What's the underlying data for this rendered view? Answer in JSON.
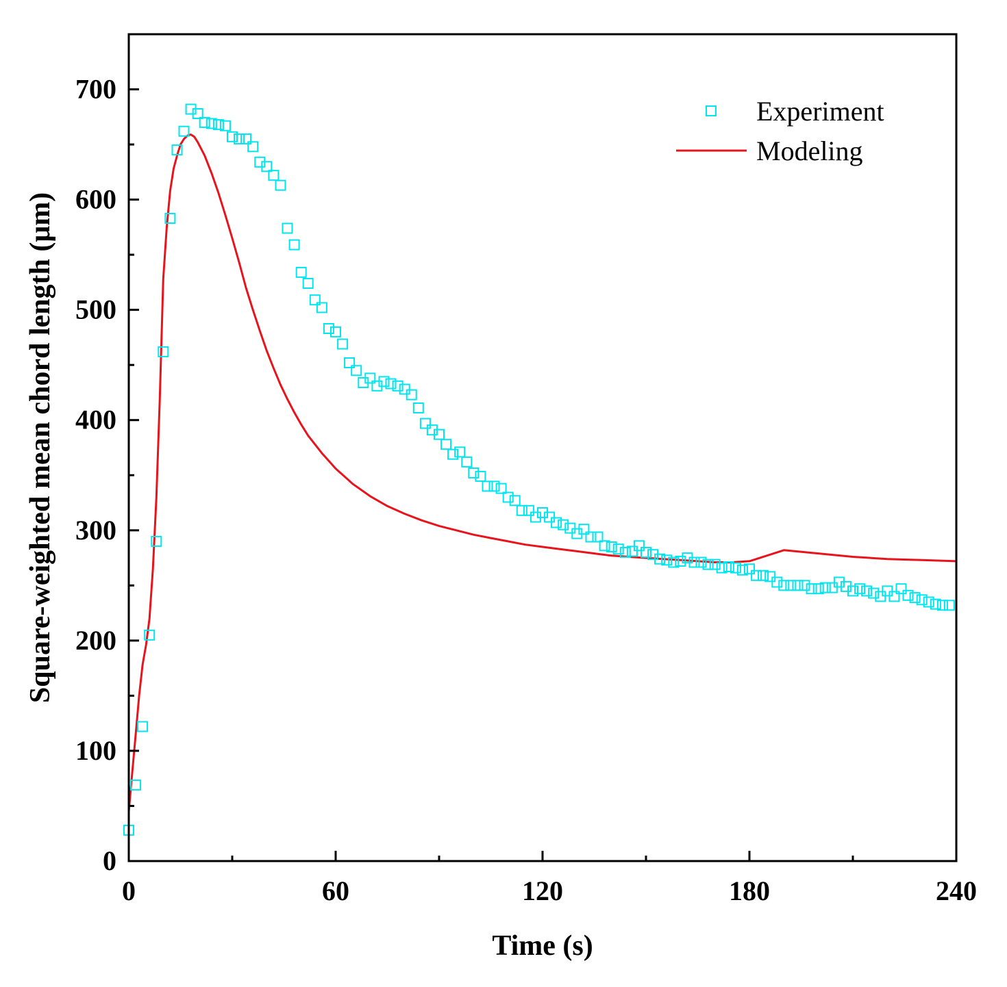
{
  "chart_data": {
    "type": "scatter",
    "title": "",
    "xlabel": "Time (s)",
    "ylabel": "Square-weighted mean chord length (μm)",
    "xlim": [
      0,
      240
    ],
    "ylim": [
      0,
      750
    ],
    "xticks": [
      0,
      60,
      120,
      180,
      240
    ],
    "xtick_labels": [
      "0",
      "60",
      "120",
      "180",
      "240"
    ],
    "x_minor_ticks": [
      30,
      90,
      150,
      210
    ],
    "yticks": [
      0,
      100,
      200,
      300,
      400,
      500,
      600,
      700
    ],
    "ytick_labels": [
      "0",
      "100",
      "200",
      "300",
      "400",
      "500",
      "600",
      "700"
    ],
    "y_minor_ticks": [
      50,
      150,
      250,
      350,
      450,
      550,
      650
    ],
    "legend_position": "top-right",
    "colors": {
      "experiment": "#00e5ee",
      "modeling": "#e8141c",
      "axis": "#000000"
    },
    "series": [
      {
        "name": "Experiment",
        "kind": "scatter",
        "marker": "open-square",
        "points": [
          [
            0,
            28
          ],
          [
            2,
            69
          ],
          [
            4,
            122
          ],
          [
            6,
            205
          ],
          [
            8,
            290
          ],
          [
            10,
            462
          ],
          [
            12,
            583
          ],
          [
            14,
            645
          ],
          [
            16,
            662
          ],
          [
            18,
            682
          ],
          [
            20,
            678
          ],
          [
            22,
            670
          ],
          [
            24,
            669
          ],
          [
            26,
            668
          ],
          [
            28,
            667
          ],
          [
            30,
            657
          ],
          [
            32,
            655
          ],
          [
            34,
            655
          ],
          [
            36,
            648
          ],
          [
            38,
            634
          ],
          [
            40,
            630
          ],
          [
            42,
            622
          ],
          [
            44,
            613
          ],
          [
            46,
            574
          ],
          [
            48,
            559
          ],
          [
            50,
            534
          ],
          [
            52,
            524
          ],
          [
            54,
            509
          ],
          [
            56,
            502
          ],
          [
            58,
            483
          ],
          [
            60,
            480
          ],
          [
            62,
            469
          ],
          [
            64,
            452
          ],
          [
            66,
            445
          ],
          [
            68,
            434
          ],
          [
            70,
            438
          ],
          [
            72,
            431
          ],
          [
            74,
            435
          ],
          [
            76,
            433
          ],
          [
            78,
            431
          ],
          [
            80,
            428
          ],
          [
            82,
            423
          ],
          [
            84,
            411
          ],
          [
            86,
            397
          ],
          [
            88,
            391
          ],
          [
            90,
            387
          ],
          [
            92,
            378
          ],
          [
            94,
            369
          ],
          [
            96,
            371
          ],
          [
            98,
            362
          ],
          [
            100,
            352
          ],
          [
            102,
            349
          ],
          [
            104,
            340
          ],
          [
            106,
            340
          ],
          [
            108,
            338
          ],
          [
            110,
            330
          ],
          [
            112,
            327
          ],
          [
            114,
            318
          ],
          [
            116,
            318
          ],
          [
            118,
            312
          ],
          [
            120,
            316
          ],
          [
            122,
            312
          ],
          [
            124,
            307
          ],
          [
            126,
            305
          ],
          [
            128,
            302
          ],
          [
            130,
            297
          ],
          [
            132,
            301
          ],
          [
            134,
            294
          ],
          [
            136,
            294
          ],
          [
            138,
            286
          ],
          [
            140,
            285
          ],
          [
            142,
            283
          ],
          [
            144,
            280
          ],
          [
            146,
            281
          ],
          [
            148,
            286
          ],
          [
            150,
            280
          ],
          [
            152,
            278
          ],
          [
            154,
            274
          ],
          [
            156,
            273
          ],
          [
            158,
            271
          ],
          [
            160,
            272
          ],
          [
            162,
            275
          ],
          [
            164,
            271
          ],
          [
            166,
            271
          ],
          [
            168,
            269
          ],
          [
            170,
            269
          ],
          [
            172,
            266
          ],
          [
            174,
            267
          ],
          [
            176,
            266
          ],
          [
            178,
            264
          ],
          [
            180,
            265
          ],
          [
            182,
            259
          ],
          [
            184,
            259
          ],
          [
            186,
            258
          ],
          [
            188,
            253
          ],
          [
            190,
            250
          ],
          [
            192,
            250
          ],
          [
            194,
            250
          ],
          [
            196,
            250
          ],
          [
            198,
            247
          ],
          [
            200,
            247
          ],
          [
            202,
            248
          ],
          [
            204,
            248
          ],
          [
            206,
            253
          ],
          [
            208,
            249
          ],
          [
            210,
            245
          ],
          [
            212,
            247
          ],
          [
            214,
            245
          ],
          [
            216,
            243
          ],
          [
            218,
            240
          ],
          [
            220,
            245
          ],
          [
            222,
            240
          ],
          [
            224,
            247
          ],
          [
            226,
            241
          ],
          [
            228,
            239
          ],
          [
            230,
            237
          ],
          [
            232,
            235
          ],
          [
            234,
            233
          ],
          [
            236,
            232
          ],
          [
            238,
            232
          ]
        ]
      },
      {
        "name": "Modeling",
        "kind": "line",
        "points": [
          [
            0,
            45
          ],
          [
            1,
            80
          ],
          [
            2,
            115
          ],
          [
            3,
            150
          ],
          [
            4,
            178
          ],
          [
            5,
            196
          ],
          [
            6,
            220
          ],
          [
            7,
            265
          ],
          [
            8,
            330
          ],
          [
            9,
            420
          ],
          [
            10,
            528
          ],
          [
            11,
            575
          ],
          [
            12,
            608
          ],
          [
            13,
            628
          ],
          [
            14,
            640
          ],
          [
            15,
            650
          ],
          [
            16,
            655
          ],
          [
            17,
            658
          ],
          [
            18,
            659
          ],
          [
            19,
            657
          ],
          [
            20,
            652
          ],
          [
            22,
            640
          ],
          [
            24,
            624
          ],
          [
            26,
            606
          ],
          [
            28,
            586
          ],
          [
            30,
            565
          ],
          [
            32,
            543
          ],
          [
            34,
            520
          ],
          [
            36,
            500
          ],
          [
            38,
            481
          ],
          [
            40,
            463
          ],
          [
            42,
            447
          ],
          [
            44,
            432
          ],
          [
            46,
            419
          ],
          [
            48,
            407
          ],
          [
            50,
            396
          ],
          [
            52,
            386
          ],
          [
            54,
            378
          ],
          [
            56,
            370
          ],
          [
            58,
            363
          ],
          [
            60,
            356
          ],
          [
            65,
            342
          ],
          [
            70,
            331
          ],
          [
            75,
            322
          ],
          [
            80,
            315
          ],
          [
            85,
            309
          ],
          [
            90,
            304
          ],
          [
            95,
            300
          ],
          [
            100,
            296
          ],
          [
            105,
            293
          ],
          [
            110,
            290
          ],
          [
            115,
            287
          ],
          [
            120,
            285
          ],
          [
            125,
            283
          ],
          [
            130,
            281
          ],
          [
            135,
            279
          ],
          [
            140,
            277
          ],
          [
            145,
            276
          ],
          [
            150,
            275
          ],
          [
            155,
            274
          ],
          [
            160,
            273
          ],
          [
            165,
            272
          ],
          [
            170,
            271
          ],
          [
            175,
            271
          ],
          [
            180,
            272
          ],
          [
            190,
            282
          ],
          [
            200,
            279
          ],
          [
            210,
            276
          ],
          [
            220,
            274
          ],
          [
            230,
            273
          ],
          [
            240,
            272
          ]
        ]
      }
    ]
  }
}
